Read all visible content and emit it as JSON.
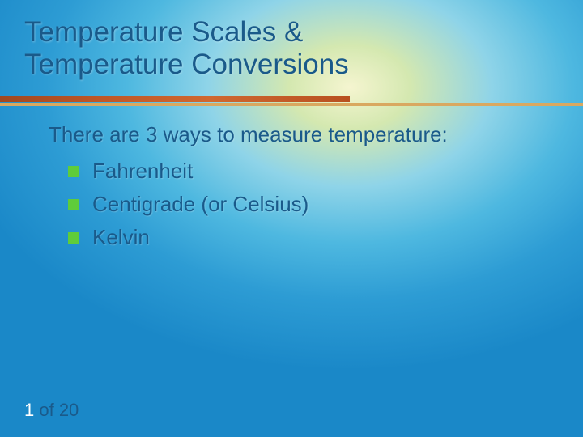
{
  "slide": {
    "title_line1": "Temperature Scales &",
    "title_line2": "Temperature Conversions",
    "intro": "There are 3 ways to measure temperature:",
    "bullets": [
      "Fahrenheit",
      "Centigrade (or Celsius)",
      "Kelvin"
    ]
  },
  "pagination": {
    "current": "1",
    "total_text": " of 20"
  },
  "styling": {
    "title_color": "#1a5a8a",
    "text_color": "#1a5a8a",
    "bullet_marker_color": "#5fcc3a",
    "separator_top_color": "#c05828",
    "separator_bottom_color": "#d9a860",
    "page_current_color": "#ffffff",
    "background_gradient": {
      "center": "#f5f5d0",
      "mid": "#8fd4e8",
      "outer": "#1a88c8"
    },
    "title_fontsize": 35,
    "body_fontsize": 26
  }
}
